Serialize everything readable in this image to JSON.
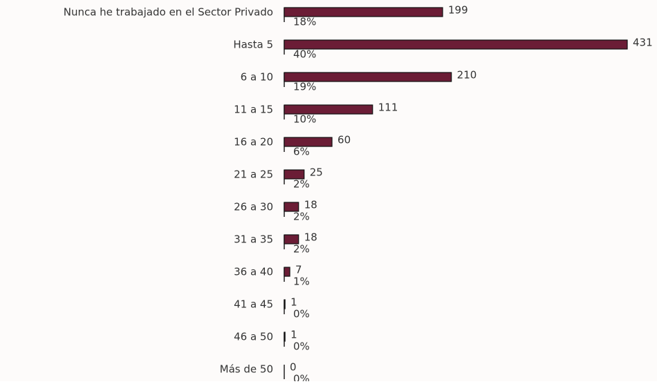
{
  "chart_data": {
    "type": "bar",
    "orientation": "horizontal",
    "categories": [
      "Nunca he trabajado en el Sector Privado",
      "Hasta 5",
      "6 a 10",
      "11 a 15",
      "16 a 20",
      "21 a 25",
      "26 a 30",
      "31 a 35",
      "36 a 40",
      "41 a 45",
      "46 a 50",
      "Más de 50"
    ],
    "series": [
      {
        "color": "#6b1d36",
        "values": [
          199,
          431,
          210,
          111,
          60,
          25,
          18,
          18,
          7,
          1,
          1,
          0
        ]
      },
      {
        "values": [
          18,
          40,
          19,
          10,
          6,
          2,
          2,
          2,
          1,
          0,
          0,
          0
        ],
        "value_labels": [
          "18%",
          "40%",
          "19%",
          "10%",
          "6%",
          "2%",
          "2%",
          "2%",
          "1%",
          "0%",
          "0%",
          "0%"
        ]
      }
    ],
    "xlim": [
      0,
      431
    ]
  }
}
